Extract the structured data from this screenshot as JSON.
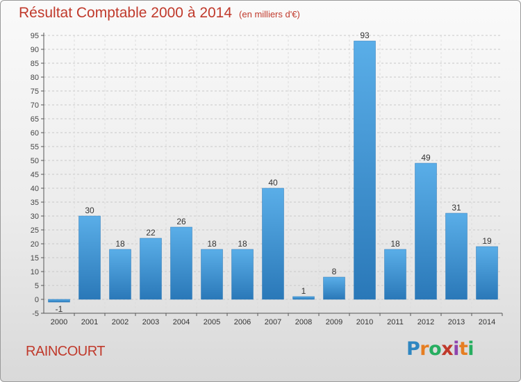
{
  "header": {
    "title": "Résultat Comptable 2000 à 2014",
    "subtitle": "(en milliers d'€)"
  },
  "footer": {
    "commune": "RAINCOURT",
    "logo_text": "Proxiti"
  },
  "colors": {
    "title": "#c0392b",
    "bar_light": "#5aaee8",
    "bar_dark": "#2a78b8",
    "logo": [
      "#2e86c1",
      "#e67e22",
      "#27ae60",
      "#c0392b",
      "#8e44ad",
      "#e67e22",
      "#27ae60"
    ]
  },
  "chart_data": {
    "type": "bar",
    "title": "Résultat Comptable 2000 à 2014",
    "subtitle": "(en milliers d'€)",
    "categories": [
      "2000",
      "2001",
      "2002",
      "2003",
      "2004",
      "2005",
      "2006",
      "2007",
      "2008",
      "2009",
      "2010",
      "2011",
      "2012",
      "2013",
      "2014"
    ],
    "values": [
      -1,
      30,
      18,
      22,
      26,
      18,
      18,
      40,
      1,
      8,
      93,
      18,
      49,
      31,
      19
    ],
    "ylim": [
      -5,
      95
    ],
    "yticks": [
      -5,
      0,
      5,
      10,
      15,
      20,
      25,
      30,
      35,
      40,
      45,
      50,
      55,
      60,
      65,
      70,
      75,
      80,
      85,
      90,
      95
    ],
    "grid": true,
    "xlabel": "",
    "ylabel": ""
  }
}
